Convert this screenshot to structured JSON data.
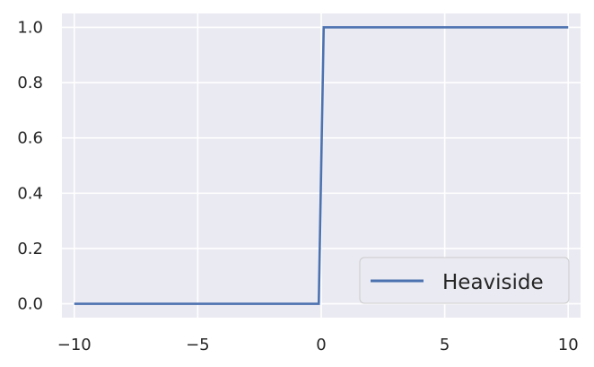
{
  "chart_data": {
    "type": "line",
    "title": "",
    "xlabel": "",
    "ylabel": "",
    "xlim": [
      -10.5,
      10.5
    ],
    "ylim": [
      -0.05,
      1.05
    ],
    "xticks": [
      -10,
      -5,
      0,
      5,
      10
    ],
    "xtick_labels": [
      "−10",
      "−5",
      "0",
      "5",
      "10"
    ],
    "yticks": [
      0.0,
      0.2,
      0.4,
      0.6,
      0.8,
      1.0
    ],
    "ytick_labels": [
      "0.0",
      "0.2",
      "0.4",
      "0.6",
      "0.8",
      "1.0"
    ],
    "grid": true,
    "legend": {
      "placement": "lower-right"
    },
    "series": [
      {
        "name": "Heaviside",
        "color": "#4c72b0",
        "x": [
          -10,
          -0.1,
          0.1,
          10
        ],
        "y": [
          0,
          0,
          1,
          1
        ]
      }
    ]
  },
  "style": {
    "background": "#ffffff",
    "axes_background": "#eaeaf2",
    "grid_color": "#ffffff",
    "text_color": "#262626"
  }
}
